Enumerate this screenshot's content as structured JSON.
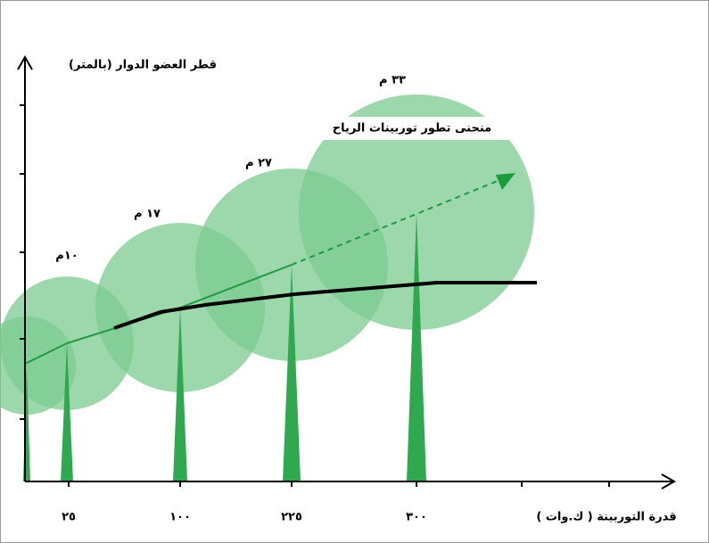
{
  "y_axis_title": "قطر العضو الدوار (بالمتر)",
  "x_axis_title": "قدرة التوربينة ( ك.وات )",
  "annotation": "منحنى تطور توربينات الرياح",
  "rotor_labels": [
    "١٠م",
    "١٧ م",
    "٢٧ م",
    "٣٣ م"
  ],
  "power_labels": [
    "٢٥",
    "١٠٠",
    "٢٢٥",
    "٣٠٠"
  ]
}
